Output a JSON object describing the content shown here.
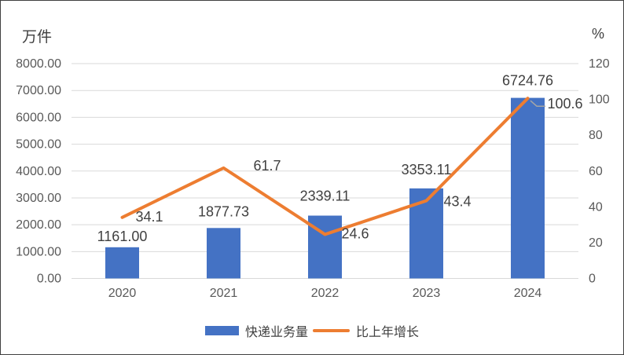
{
  "chart_data": {
    "type": "combo-bar-line",
    "ylabel_left": "万件",
    "ylabel_right": "%",
    "categories": [
      "2020",
      "2021",
      "2022",
      "2023",
      "2024"
    ],
    "series": [
      {
        "name": "快递业务量",
        "type": "bar",
        "axis": "left",
        "color": "#4472C4",
        "values": [
          1161.0,
          1877.73,
          2339.11,
          3353.11,
          6724.76
        ],
        "labels": [
          "1161.00",
          "1877.73",
          "2339.11",
          "3353.11",
          "6724.76"
        ]
      },
      {
        "name": "比上年增长",
        "type": "line",
        "axis": "right",
        "color": "#ED7D31",
        "values": [
          34.1,
          61.7,
          24.6,
          43.4,
          100.6
        ],
        "labels": [
          "34.1",
          "61.7",
          "24.6",
          "43.4",
          "100.6"
        ]
      }
    ],
    "left_axis": {
      "min": 0,
      "max": 8000,
      "step": 1000,
      "tick_labels": [
        "0.00",
        "1000.00",
        "2000.00",
        "3000.00",
        "4000.00",
        "5000.00",
        "6000.00",
        "7000.00",
        "8000.00"
      ]
    },
    "right_axis": {
      "min": 0,
      "max": 120,
      "step": 20,
      "tick_labels": [
        "0",
        "20",
        "40",
        "60",
        "80",
        "100",
        "120"
      ]
    },
    "grid": true,
    "legend_position": "bottom",
    "colors": {
      "gridline": "#D9D9D9",
      "tick_text": "#595959",
      "label_text": "#404040",
      "leader_line": "#A6A6A6",
      "border": "#404040"
    }
  }
}
